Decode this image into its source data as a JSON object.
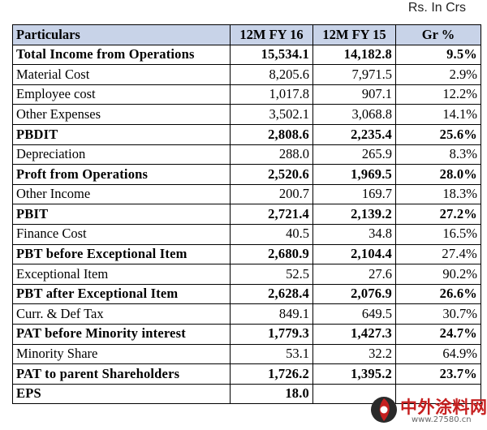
{
  "unit_note": "Rs. In Crs",
  "headers": [
    "Particulars",
    "12M FY 16",
    "12M FY 15",
    "Gr %"
  ],
  "rows": [
    {
      "label": "Total Income from Operations",
      "fy16": "15,534.1",
      "fy15": "14,182.8",
      "gr": "9.5%",
      "bold": true
    },
    {
      "label": "Material Cost",
      "fy16": "8,205.6",
      "fy15": "7,971.5",
      "gr": "2.9%",
      "bold": false
    },
    {
      "label": "Employee cost",
      "fy16": "1,017.8",
      "fy15": "907.1",
      "gr": "12.2%",
      "bold": false
    },
    {
      "label": "Other Expenses",
      "fy16": "3,502.1",
      "fy15": "3,068.8",
      "gr": "14.1%",
      "bold": false
    },
    {
      "label": "PBDIT",
      "fy16": "2,808.6",
      "fy15": "2,235.4",
      "gr": "25.6%",
      "bold": true
    },
    {
      "label": "Depreciation",
      "fy16": "288.0",
      "fy15": "265.9",
      "gr": "8.3%",
      "bold": false
    },
    {
      "label": "Proft from Operations",
      "fy16": "2,520.6",
      "fy15": "1,969.5",
      "gr": "28.0%",
      "bold": true
    },
    {
      "label": "Other Income",
      "fy16": "200.7",
      "fy15": "169.7",
      "gr": "18.3%",
      "bold": false
    },
    {
      "label": "PBIT",
      "fy16": "2,721.4",
      "fy15": "2,139.2",
      "gr": "27.2%",
      "bold": true
    },
    {
      "label": "Finance Cost",
      "fy16": "40.5",
      "fy15": "34.8",
      "gr": "16.5%",
      "bold": false
    },
    {
      "label": "PBT before Exceptional Item",
      "fy16": "2,680.9",
      "fy15": "2,104.4",
      "gr": "27.4%",
      "bold": true,
      "gr_plain": true
    },
    {
      "label": "Exceptional Item",
      "fy16": "52.5",
      "fy15": "27.6",
      "gr": "90.2%",
      "bold": false
    },
    {
      "label": "PBT after Exceptional Item",
      "fy16": "2,628.4",
      "fy15": "2,076.9",
      "gr": "26.6%",
      "bold": true
    },
    {
      "label": "Curr. & Def Tax",
      "fy16": "849.1",
      "fy15": "649.5",
      "gr": "30.7%",
      "bold": false
    },
    {
      "label": "PAT before Minority interest",
      "fy16": "1,779.3",
      "fy15": "1,427.3",
      "gr": "24.7%",
      "bold": true
    },
    {
      "label": "Minority Share",
      "fy16": "53.1",
      "fy15": "32.2",
      "gr": "64.9%",
      "bold": false
    },
    {
      "label": "PAT to parent Shareholders",
      "fy16": "1,726.2",
      "fy15": "1,395.2",
      "gr": "23.7%",
      "bold": true
    },
    {
      "label": "EPS",
      "fy16": "18.0",
      "fy15": "",
      "gr": "",
      "bold": true
    }
  ],
  "watermark": {
    "name": "中外涂料网",
    "url": "www.27580.cn",
    "colors": {
      "brand": "#c61f1f",
      "logo_dark": "#2a2a2a"
    }
  },
  "colors": {
    "header_bg": "#c8d3e8",
    "border": "#000000"
  }
}
